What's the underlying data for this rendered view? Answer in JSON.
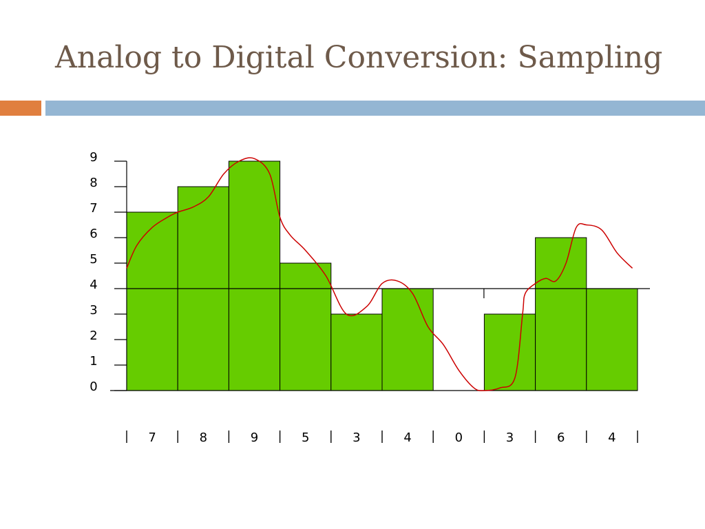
{
  "title": "Analog to Digital Conversion: Sampling",
  "theme": {
    "title_color": "#6e5a4a",
    "accent_bar": "#e07f3f",
    "main_bar": "#94b6d3"
  },
  "chart_data": {
    "type": "bar",
    "title": "",
    "xlabel": "",
    "ylabel": "",
    "ylim": [
      0,
      9
    ],
    "y_ticks": [
      "0",
      "1",
      "2",
      "3",
      "4",
      "5",
      "6",
      "7",
      "8",
      "9"
    ],
    "categories": [
      "7",
      "8",
      "9",
      "5",
      "3",
      "4",
      "0",
      "3",
      "6",
      "4"
    ],
    "values": [
      7,
      8,
      9,
      5,
      3,
      4,
      0,
      3,
      6,
      4
    ],
    "bar_color": "#66cc00",
    "reference_line_y": 4,
    "analog_signal": {
      "color": "#cc0000",
      "x": [
        0,
        0.2,
        0.5,
        0.8,
        1.0,
        1.3,
        1.6,
        1.9,
        2.2,
        2.5,
        2.8,
        3.0,
        3.2,
        3.5,
        3.9,
        4.3,
        4.7,
        5.0,
        5.3,
        5.6,
        5.9,
        6.2,
        6.5,
        6.8,
        7.0,
        7.3,
        7.6,
        7.75,
        7.8,
        8.0,
        8.2,
        8.4,
        8.6,
        8.8,
        9.0,
        9.3,
        9.6,
        9.9
      ],
      "y": [
        4.8,
        5.7,
        6.4,
        6.8,
        7.0,
        7.2,
        7.6,
        8.5,
        9.0,
        9.1,
        8.5,
        6.8,
        6.1,
        5.5,
        4.5,
        3.0,
        3.3,
        4.2,
        4.3,
        3.8,
        2.5,
        1.8,
        0.8,
        0.1,
        0.0,
        0.1,
        0.5,
        3.0,
        3.8,
        4.2,
        4.4,
        4.3,
        5.0,
        6.4,
        6.5,
        6.3,
        5.4,
        4.8
      ]
    }
  }
}
